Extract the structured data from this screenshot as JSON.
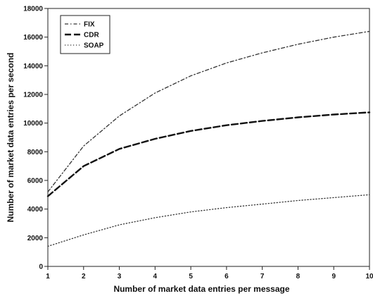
{
  "chart_data": {
    "type": "line",
    "xlabel": "Number of market data entries per message",
    "ylabel": "Number of market data entries per second",
    "x": [
      1,
      2,
      3,
      4,
      5,
      6,
      7,
      8,
      9,
      10
    ],
    "xlim": [
      1,
      10
    ],
    "ylim": [
      0,
      18000
    ],
    "x_ticks": [
      "1",
      "2",
      "3",
      "4",
      "5",
      "6",
      "7",
      "8",
      "9",
      "10"
    ],
    "y_ticks": [
      "0",
      "2000",
      "4000",
      "6000",
      "8000",
      "10000",
      "12000",
      "14000",
      "16000",
      "18000"
    ],
    "grid": false,
    "legend_position": "top-left",
    "series": [
      {
        "name": "FIX",
        "values": [
          5200,
          8400,
          10500,
          12100,
          13300,
          14200,
          14900,
          15500,
          16000,
          16400
        ],
        "style": "dash-dot",
        "color": "#333333"
      },
      {
        "name": "CDR",
        "values": [
          4900,
          7000,
          8200,
          8900,
          9450,
          9850,
          10150,
          10400,
          10600,
          10750
        ],
        "style": "dashed",
        "color": "#111111"
      },
      {
        "name": "SOAP",
        "values": [
          1400,
          2200,
          2900,
          3400,
          3800,
          4100,
          4350,
          4600,
          4800,
          5000
        ],
        "style": "dotted",
        "color": "#333333"
      }
    ]
  }
}
